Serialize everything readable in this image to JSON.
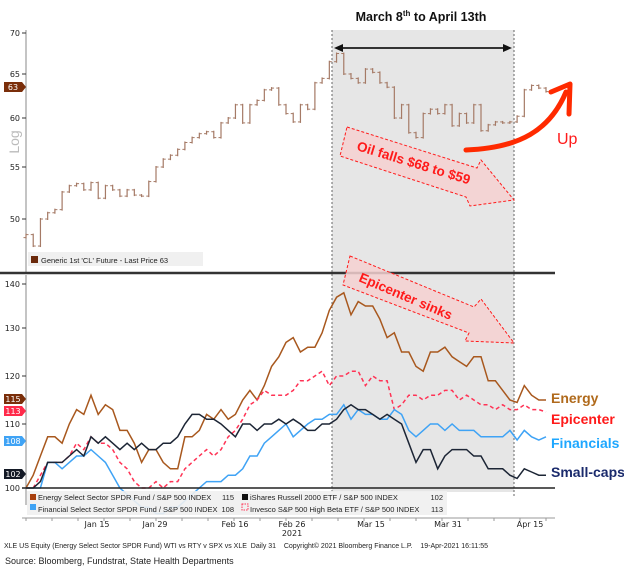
{
  "header": {
    "title_main": "March 8",
    "title_sup": "th",
    "title_rest": " to April 13th"
  },
  "colors": {
    "oil": "#a57a66",
    "energy": "#a8581e",
    "epicenter": "#ff3355",
    "financials": "#3fa3f5",
    "smallcaps": "#1c2535",
    "annotation": "#ff1a1a",
    "shade": "#e6e6e6",
    "label_energy": "#b06a1c",
    "label_financials": "#1ea7ff",
    "label_smallcaps": "#1a2a6c"
  },
  "annotations": {
    "oil_falls": "Oil falls $68 to $59",
    "epicenter_sinks": "Epicenter sinks",
    "up": "Up"
  },
  "right_labels": {
    "energy": "Energy",
    "epicenter": "Epicenter",
    "financials": "Financials",
    "smallcaps": "Small-caps"
  },
  "footer": {
    "bloomberg_line": "XLE US Equity (Energy Select Sector SPDR Fund) WTI vs RTY v SPX vs XLE  Daily 31    Copyright© 2021 Bloomberg Finance L.P.    19-Apr-2021 16:11:55",
    "source": "Source: Bloomberg, Fundstrat, State Health Departments"
  },
  "chart_data": [
    {
      "type": "line",
      "title": "",
      "scale": "log",
      "ylabel": "Log",
      "yticks": [
        50,
        55,
        60,
        65,
        70
      ],
      "ylim": [
        46,
        70
      ],
      "legend": "Generic 1st 'CL' Future - Last Price 63",
      "last_value_badge": "63",
      "series": [
        {
          "name": "Generic 1st 'CL' Future - Last Price 63",
          "values": [
            48.5,
            47.4,
            50,
            50.6,
            50.9,
            52.6,
            53.2,
            53.4,
            52.8,
            53.5,
            52,
            53.2,
            52.8,
            52.2,
            52.8,
            52.3,
            52.2,
            53.6,
            55,
            55.8,
            56.2,
            56.8,
            57.5,
            58,
            58.4,
            58.6,
            58,
            59.5,
            60,
            61.5,
            59.5,
            61.5,
            62,
            63.2,
            63.4,
            61.5,
            60.5,
            59.6,
            61.5,
            61,
            64,
            64.5,
            66.5,
            67.5,
            65,
            64.5,
            64,
            65.6,
            65.2,
            64,
            63.5,
            60,
            61.5,
            58.5,
            58,
            60.5,
            61,
            60.5,
            61.5,
            59.2,
            60.5,
            59.5,
            61.5,
            58.7,
            59.3,
            59.6,
            59.5,
            59.6,
            60.2,
            63.2,
            63.7,
            63.4,
            63
          ]
        }
      ]
    },
    {
      "type": "line",
      "title": "",
      "yticks": [
        100,
        110,
        120,
        130,
        140
      ],
      "ylim": [
        100,
        140
      ],
      "xticks": [
        "Jan 15",
        "Jan 29",
        "Feb 16",
        "Feb 26",
        "Mar 15",
        "Mar 31",
        "Apr 15"
      ],
      "xyear": "2021",
      "legend_entries": [
        {
          "label": "Energy Select Sector SPDR Fund / S&P 500 INDEX",
          "value": "115"
        },
        {
          "label": "iShares Russell 2000 ETF / S&P 500 INDEX",
          "value": "102"
        },
        {
          "label": "Financial Select Sector SPDR Fund / S&P 500 INDEX",
          "value": "108"
        },
        {
          "label": "Invesco S&P 500 High Beta ETF / S&P 500 INDEX",
          "value": "113"
        }
      ],
      "badges": {
        "energy": "115",
        "epicenter": "113",
        "financials": "108",
        "smallcaps": "102"
      },
      "series": [
        {
          "name": "Energy Select Sector SPDR Fund / S&P 500 INDEX",
          "values": [
            100,
            102,
            105,
            108,
            108,
            107,
            110,
            113,
            112,
            116,
            112,
            114,
            113,
            109,
            109,
            107,
            104,
            106,
            106,
            104,
            103,
            103,
            108,
            108,
            109,
            112,
            111,
            113,
            111,
            112,
            115,
            117,
            115,
            118,
            122,
            124,
            127,
            128,
            125,
            126,
            126,
            129,
            134,
            137,
            138,
            133,
            136,
            135,
            135,
            132,
            128,
            129,
            125,
            125,
            122,
            121,
            125,
            125,
            126,
            124,
            123,
            122,
            124,
            124,
            119,
            119,
            117,
            115,
            114.5,
            118,
            116,
            115,
            115
          ]
        },
        {
          "name": "Invesco S&P 500 High Beta ETF / S&P 500 INDEX",
          "values": [
            100,
            100,
            102,
            104,
            104,
            104,
            105,
            107,
            106,
            108,
            107,
            107,
            106,
            104,
            103,
            101,
            100,
            100,
            101,
            100,
            101,
            101,
            103,
            104,
            105,
            106,
            105,
            106,
            108,
            109,
            111,
            114,
            115,
            117,
            116,
            116,
            116,
            117,
            119,
            119,
            120,
            121,
            118,
            120,
            120,
            121,
            121,
            118,
            120,
            119,
            119,
            113,
            114,
            116,
            116,
            115,
            116,
            116,
            117,
            117,
            115,
            116,
            115,
            114,
            114,
            113,
            114,
            113,
            113,
            114,
            113,
            113,
            112.5
          ]
        },
        {
          "name": "Financial Select Sector SPDR Fund / S&P 500 INDEX",
          "values": [
            100,
            100,
            100,
            104,
            104,
            103,
            104,
            105,
            105,
            106,
            105,
            104,
            102,
            100,
            99,
            98,
            97,
            97,
            96,
            96,
            97,
            97,
            98,
            99,
            100,
            101,
            101,
            101,
            102,
            102,
            103,
            105,
            105,
            107,
            108,
            109,
            110,
            108,
            109,
            110,
            111,
            111,
            112,
            112,
            114,
            111,
            113,
            112,
            112,
            111,
            111,
            113,
            112,
            109,
            108,
            109,
            110,
            110,
            109,
            110,
            109,
            109,
            109,
            108,
            108,
            108,
            108,
            109,
            107.5,
            109,
            108,
            107.5,
            108
          ]
        },
        {
          "name": "iShares Russell 2000 ETF / S&P 500 INDEX",
          "values": [
            100,
            100,
            101,
            104,
            104,
            104,
            105,
            106,
            105,
            108,
            107,
            108,
            107,
            106,
            107,
            106,
            107,
            106,
            106,
            107,
            107,
            108,
            110,
            112,
            112,
            111,
            111,
            110,
            109,
            108,
            110,
            110,
            109,
            110,
            110,
            111,
            110,
            111,
            110,
            109,
            109,
            110,
            110,
            111,
            113,
            114,
            113,
            113,
            112,
            111,
            112,
            111,
            110,
            107,
            104,
            106,
            106,
            103,
            105,
            106,
            106,
            106,
            105,
            105,
            103,
            103,
            103,
            102,
            101.5,
            103,
            102.5,
            102,
            102
          ]
        }
      ]
    }
  ]
}
